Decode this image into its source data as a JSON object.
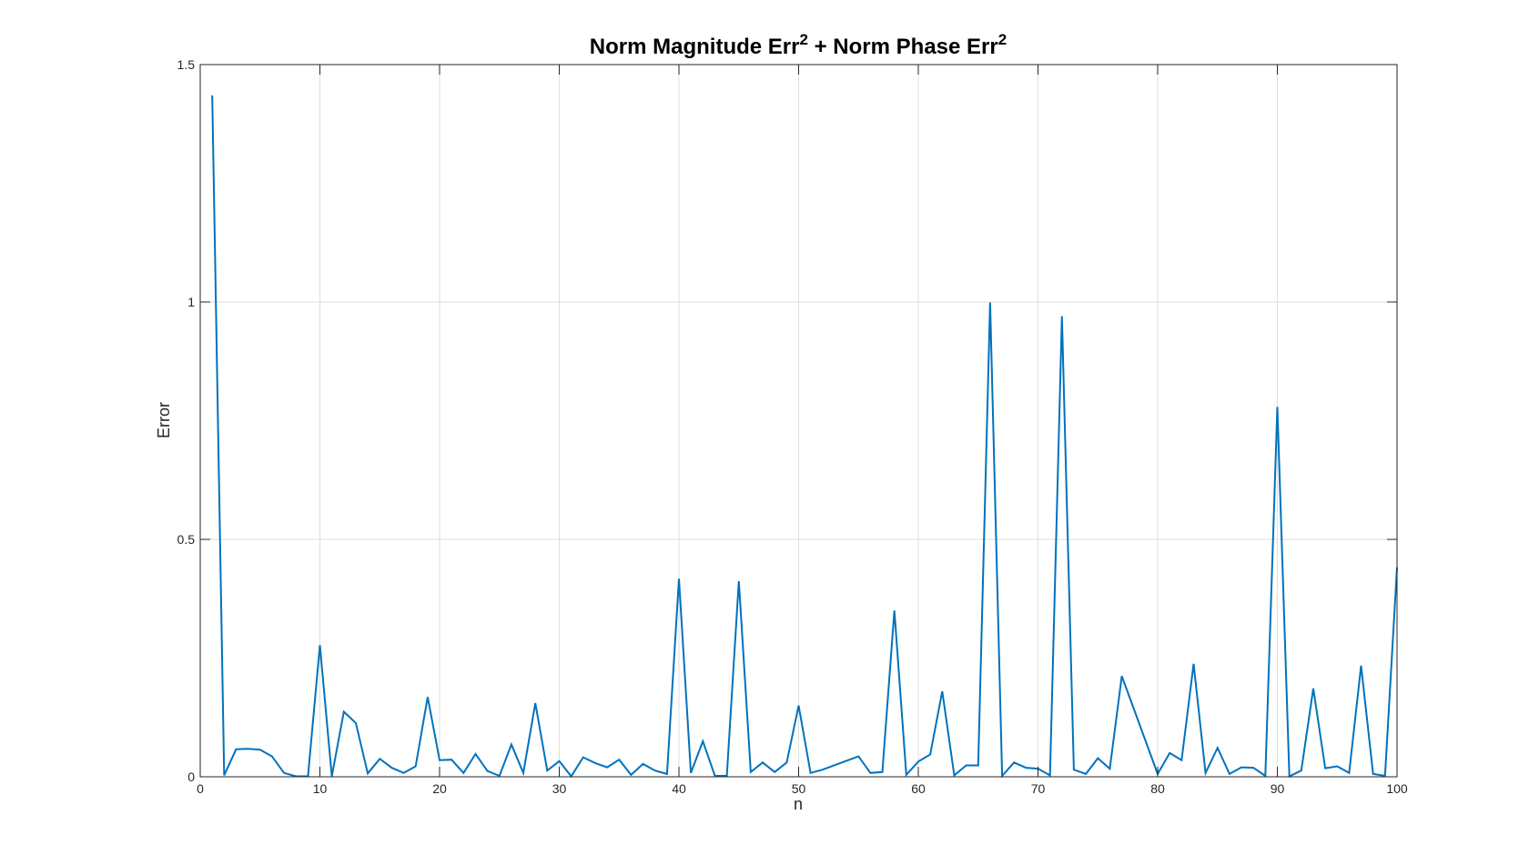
{
  "chart_data": {
    "type": "line",
    "title_main_1": "Norm Magnitude Err",
    "title_sup_1": "2",
    "title_main_2": " + Norm Phase Err",
    "title_sup_2": "2",
    "xlabel": "n",
    "ylabel": "Error",
    "xlim": [
      0,
      100
    ],
    "ylim": [
      0,
      1.5
    ],
    "xticks": [
      0,
      10,
      20,
      30,
      40,
      50,
      60,
      70,
      80,
      90,
      100
    ],
    "yticks": [
      0,
      0.5,
      1,
      1.5
    ],
    "xtick_labels": [
      "0",
      "10",
      "20",
      "30",
      "40",
      "50",
      "60",
      "70",
      "80",
      "90",
      "100"
    ],
    "ytick_labels": [
      "0",
      "0.5",
      "1",
      "1.5"
    ],
    "grid": true,
    "line_color": "#0072BD",
    "x": [
      1,
      2,
      3,
      4,
      5,
      6,
      7,
      8,
      9,
      10,
      11,
      12,
      13,
      14,
      15,
      16,
      17,
      18,
      19,
      20,
      21,
      22,
      23,
      24,
      25,
      26,
      27,
      28,
      29,
      30,
      31,
      32,
      33,
      34,
      35,
      36,
      37,
      38,
      39,
      40,
      41,
      42,
      43,
      44,
      45,
      46,
      47,
      48,
      49,
      50,
      51,
      52,
      55,
      56,
      57,
      58,
      59,
      60,
      61,
      62,
      63,
      64,
      65,
      66,
      67,
      68,
      69,
      70,
      71,
      72,
      73,
      74,
      75,
      76,
      77,
      80,
      81,
      82,
      83,
      84,
      85,
      86,
      87,
      88,
      89,
      90,
      91,
      92,
      93,
      94,
      95,
      96,
      97,
      98,
      99,
      100
    ],
    "y": [
      1.435,
      0.003,
      0.058,
      0.059,
      0.057,
      0.043,
      0.008,
      0.001,
      0.001,
      0.277,
      0.001,
      0.137,
      0.113,
      0.007,
      0.038,
      0.019,
      0.008,
      0.022,
      0.168,
      0.035,
      0.036,
      0.008,
      0.048,
      0.012,
      0.002,
      0.068,
      0.008,
      0.155,
      0.013,
      0.033,
      0.001,
      0.041,
      0.029,
      0.02,
      0.036,
      0.004,
      0.027,
      0.013,
      0.006,
      0.417,
      0.008,
      0.075,
      0.002,
      0.002,
      0.412,
      0.01,
      0.03,
      0.01,
      0.03,
      0.15,
      0.008,
      0.015,
      0.043,
      0.008,
      0.01,
      0.35,
      0.004,
      0.032,
      0.047,
      0.18,
      0.003,
      0.024,
      0.024,
      0.999,
      0.002,
      0.03,
      0.019,
      0.017,
      0.003,
      0.97,
      0.015,
      0.006,
      0.039,
      0.017,
      0.212,
      0.006,
      0.05,
      0.035,
      0.238,
      0.008,
      0.061,
      0.006,
      0.02,
      0.019,
      0.002,
      0.779,
      0.001,
      0.013,
      0.186,
      0.018,
      0.022,
      0.008,
      0.234,
      0.006,
      0.002,
      0.441
    ]
  }
}
